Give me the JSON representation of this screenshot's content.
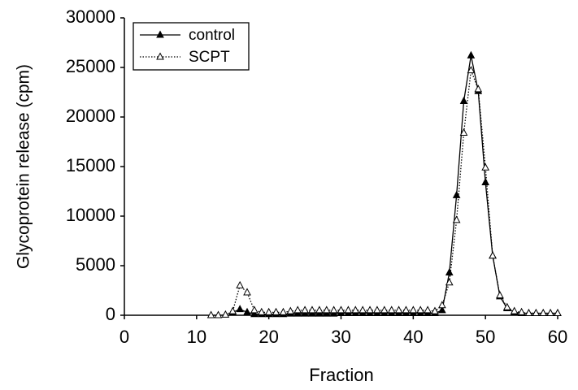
{
  "chart_data": {
    "type": "line",
    "xlabel": "Fraction",
    "ylabel": "Glycoprotein release (cpm)",
    "xlim": [
      0,
      60
    ],
    "xticks": [
      0,
      10,
      20,
      30,
      40,
      50,
      60
    ],
    "ylim": [
      0,
      30000
    ],
    "yticks": [
      0,
      5000,
      10000,
      15000,
      20000,
      25000,
      30000
    ],
    "grid": false,
    "legend": "upper left",
    "series": [
      {
        "name": "control",
        "color": "#000000",
        "line_style": "solid",
        "marker_fill": "filled",
        "x": [
          15,
          16,
          17,
          18,
          19,
          20,
          21,
          22,
          23,
          24,
          25,
          26,
          27,
          28,
          29,
          30,
          31,
          32,
          33,
          34,
          35,
          36,
          37,
          38,
          39,
          40,
          41,
          42,
          43,
          44,
          45,
          46,
          47,
          48,
          49,
          50,
          51,
          52,
          53,
          54,
          55,
          56,
          57,
          58,
          59,
          60
        ],
        "values": [
          300,
          600,
          300,
          100,
          100,
          100,
          100,
          100,
          150,
          150,
          150,
          150,
          150,
          150,
          150,
          200,
          200,
          200,
          200,
          200,
          200,
          200,
          200,
          200,
          200,
          200,
          200,
          200,
          200,
          500,
          4300,
          12100,
          21600,
          26200,
          22600,
          13400,
          6000,
          1900,
          700,
          300,
          200,
          200,
          200,
          200,
          200,
          200
        ]
      },
      {
        "name": "SCPT",
        "color": "#000000",
        "line_style": "dotted",
        "marker_fill": "open",
        "x": [
          12,
          13,
          14,
          15,
          16,
          17,
          18,
          19,
          20,
          21,
          22,
          23,
          24,
          25,
          26,
          27,
          28,
          29,
          30,
          31,
          32,
          33,
          34,
          35,
          36,
          37,
          38,
          39,
          40,
          41,
          42,
          43,
          44,
          45,
          46,
          47,
          48,
          49,
          50,
          51,
          52,
          53,
          54,
          55,
          56,
          57,
          58,
          59,
          60
        ],
        "values": [
          0,
          0,
          50,
          400,
          3000,
          2300,
          500,
          300,
          300,
          300,
          300,
          400,
          500,
          500,
          500,
          500,
          500,
          500,
          500,
          500,
          500,
          500,
          500,
          500,
          500,
          500,
          500,
          500,
          500,
          500,
          500,
          400,
          1000,
          3300,
          9600,
          18400,
          24700,
          22800,
          14900,
          6000,
          2000,
          800,
          400,
          300,
          200,
          200,
          200,
          200,
          200
        ]
      }
    ]
  }
}
